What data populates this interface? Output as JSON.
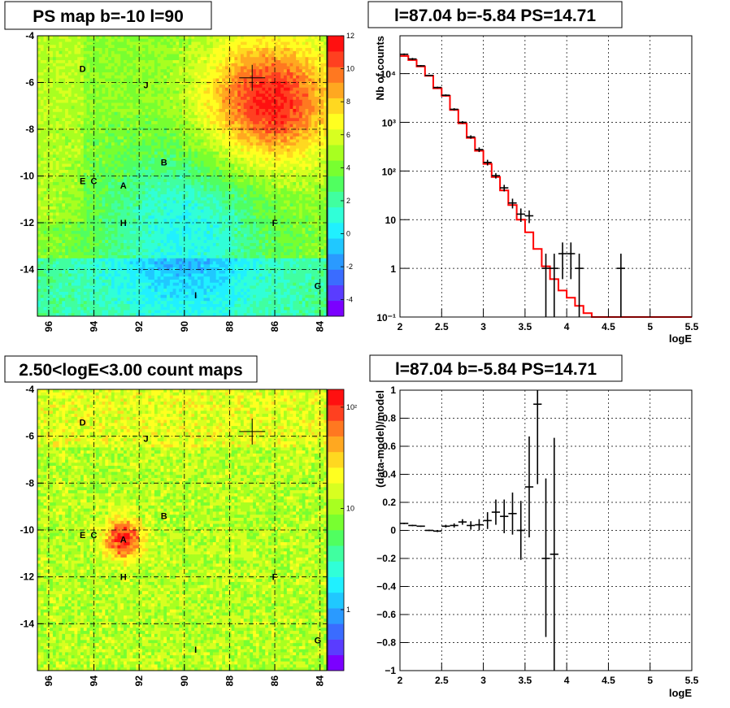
{
  "colors": {
    "model_line": "#ff0000",
    "data_marker": "#000000",
    "palette": [
      "#7b00ff",
      "#5a3cff",
      "#3a6cff",
      "#2a9aff",
      "#20c8ff",
      "#20f0ff",
      "#30ffd8",
      "#40ffa0",
      "#50ff60",
      "#78ff30",
      "#a8ff20",
      "#d8ff20",
      "#ffff20",
      "#ffd820",
      "#ffa820",
      "#ff7820",
      "#ff4020",
      "#ff1010"
    ]
  },
  "chart_data": [
    {
      "panel": "top-left",
      "type": "heatmap",
      "title": "PS map b=-10 l=90",
      "xticks": [
        "96",
        "94",
        "92",
        "90",
        "88",
        "86",
        "84"
      ],
      "yticks": [
        "-4",
        "-6",
        "-8",
        "-10",
        "-12",
        "-14"
      ],
      "xlim": [
        96.5,
        83.7
      ],
      "ylim": [
        -16,
        -4
      ],
      "colorbar": {
        "scale": "linear",
        "range": [
          -5,
          12
        ],
        "ticks": [
          "12",
          "10",
          "8",
          "6",
          "4",
          "2",
          "0",
          "-2",
          "-4"
        ]
      },
      "markers": [
        {
          "shape": "cross",
          "x": 87.0,
          "y": -5.8
        }
      ],
      "sources": [
        {
          "label": "D",
          "x": 94.5,
          "y": -5.4
        },
        {
          "label": "J",
          "x": 91.7,
          "y": -6.1
        },
        {
          "label": "B",
          "x": 90.9,
          "y": -9.4
        },
        {
          "label": "E",
          "x": 94.5,
          "y": -10.2
        },
        {
          "label": "C",
          "x": 94.0,
          "y": -10.2
        },
        {
          "label": "A",
          "x": 92.7,
          "y": -10.4
        },
        {
          "label": "H",
          "x": 92.7,
          "y": -12.0
        },
        {
          "label": "F",
          "x": 86.0,
          "y": -12.0
        },
        {
          "label": "I",
          "x": 89.5,
          "y": -15.1
        },
        {
          "label": "G",
          "x": 84.1,
          "y": -14.7
        }
      ]
    },
    {
      "panel": "top-right",
      "type": "line",
      "title": "l=87.04 b=-5.84 PS=14.71",
      "xlabel": "logE",
      "ylabel": "Nb of counts",
      "xlim": [
        2,
        5.5
      ],
      "ylim": [
        0.1,
        60000
      ],
      "yscale": "log",
      "xticks": [
        "2",
        "2.5",
        "3",
        "3.5",
        "4",
        "4.5",
        "5",
        "5.5"
      ],
      "yticks": [
        {
          "label": "10⁴",
          "v": 10000
        },
        {
          "label": "10³",
          "v": 1000
        },
        {
          "label": "10²",
          "v": 100
        },
        {
          "label": "10",
          "v": 10
        },
        {
          "label": "1",
          "v": 1
        },
        {
          "label": "10⁻¹",
          "v": 0.1
        }
      ],
      "grid": true,
      "bin_edges": [
        2.0,
        2.1,
        2.2,
        2.3,
        2.4,
        2.5,
        2.6,
        2.7,
        2.8,
        2.9,
        3.0,
        3.1,
        3.2,
        3.3,
        3.4,
        3.5,
        3.6,
        3.7,
        3.8,
        3.9,
        4.0,
        4.1,
        4.2,
        4.3,
        4.4,
        4.5,
        4.6,
        4.7,
        4.8,
        4.9,
        5.0,
        5.1,
        5.2,
        5.3,
        5.4,
        5.5
      ],
      "model": [
        23000,
        19000,
        14000,
        9000,
        5000,
        3500,
        1800,
        950,
        480,
        260,
        140,
        75,
        40,
        20,
        10,
        5.5,
        2.5,
        1.1,
        0.6,
        0.35,
        0.25,
        0.17,
        0.12,
        0.1,
        0.1,
        0.1,
        0.1,
        0.1,
        0.1,
        0.1,
        0.1,
        0.1,
        0.1,
        0.1,
        0.1
      ],
      "data": [
        {
          "x": 2.05,
          "y": 25000,
          "lo": 24000,
          "hi": 26000
        },
        {
          "x": 2.15,
          "y": 20000,
          "lo": 19000,
          "hi": 21000
        },
        {
          "x": 2.25,
          "y": 14500,
          "lo": 14000,
          "hi": 15000
        },
        {
          "x": 2.35,
          "y": 9200,
          "lo": 8900,
          "hi": 9500
        },
        {
          "x": 2.45,
          "y": 5200,
          "lo": 5000,
          "hi": 5400
        },
        {
          "x": 2.55,
          "y": 3600,
          "lo": 3450,
          "hi": 3750
        },
        {
          "x": 2.65,
          "y": 1850,
          "lo": 1750,
          "hi": 1950
        },
        {
          "x": 2.75,
          "y": 1000,
          "lo": 940,
          "hi": 1060
        },
        {
          "x": 2.85,
          "y": 500,
          "lo": 460,
          "hi": 540
        },
        {
          "x": 2.95,
          "y": 275,
          "lo": 245,
          "hi": 305
        },
        {
          "x": 3.05,
          "y": 150,
          "lo": 130,
          "hi": 170
        },
        {
          "x": 3.15,
          "y": 80,
          "lo": 70,
          "hi": 90
        },
        {
          "x": 3.25,
          "y": 45,
          "lo": 38,
          "hi": 52
        },
        {
          "x": 3.35,
          "y": 22,
          "lo": 17,
          "hi": 27
        },
        {
          "x": 3.45,
          "y": 13,
          "lo": 9,
          "hi": 17
        },
        {
          "x": 3.55,
          "y": 12,
          "lo": 8.5,
          "hi": 15.5
        },
        {
          "x": 3.75,
          "y": 1,
          "lo": 0.1,
          "hi": 2
        },
        {
          "x": 3.85,
          "y": 1,
          "lo": 0.1,
          "hi": 2
        },
        {
          "x": 3.95,
          "y": 2,
          "lo": 0.6,
          "hi": 3.4
        },
        {
          "x": 4.05,
          "y": 2,
          "lo": 0.6,
          "hi": 3.4
        },
        {
          "x": 4.15,
          "y": 1,
          "lo": 0.1,
          "hi": 2
        },
        {
          "x": 4.65,
          "y": 1,
          "lo": 0.1,
          "hi": 2
        }
      ]
    },
    {
      "panel": "bottom-left",
      "type": "heatmap",
      "title": "2.50<logE<3.00 count maps",
      "xticks": [
        "96",
        "94",
        "92",
        "90",
        "88",
        "86",
        "84"
      ],
      "yticks": [
        "-4",
        "-6",
        "-8",
        "-10",
        "-12",
        "-14"
      ],
      "xlim": [
        96.5,
        83.7
      ],
      "ylim": [
        -16,
        -4
      ],
      "colorbar": {
        "scale": "log",
        "range": [
          0.25,
          150
        ],
        "ticks": [
          "10²",
          "10",
          "1"
        ]
      },
      "markers": [
        {
          "shape": "cross",
          "x": 87.0,
          "y": -5.8
        }
      ],
      "sources": [
        {
          "label": "D",
          "x": 94.5,
          "y": -5.4
        },
        {
          "label": "J",
          "x": 91.7,
          "y": -6.1
        },
        {
          "label": "B",
          "x": 90.9,
          "y": -9.4
        },
        {
          "label": "E",
          "x": 94.5,
          "y": -10.2
        },
        {
          "label": "C",
          "x": 94.0,
          "y": -10.2
        },
        {
          "label": "A",
          "x": 92.7,
          "y": -10.4
        },
        {
          "label": "H",
          "x": 92.7,
          "y": -12.0
        },
        {
          "label": "F",
          "x": 86.0,
          "y": -12.0
        },
        {
          "label": "I",
          "x": 89.5,
          "y": -15.1
        },
        {
          "label": "G",
          "x": 84.1,
          "y": -14.7
        }
      ]
    },
    {
      "panel": "bottom-right",
      "type": "scatter",
      "title": "l=87.04 b=-5.84 PS=14.71",
      "xlabel": "logE",
      "ylabel": "(data-model)/model",
      "xlim": [
        2,
        5.5
      ],
      "ylim": [
        -1,
        1
      ],
      "xticks": [
        "2",
        "2.5",
        "3",
        "3.5",
        "4",
        "4.5",
        "5",
        "5.5"
      ],
      "yticks": [
        {
          "label": "1",
          "v": 1
        },
        {
          "label": "0.8",
          "v": 0.8
        },
        {
          "label": "0.6",
          "v": 0.6
        },
        {
          "label": "0.4",
          "v": 0.4
        },
        {
          "label": "0.2",
          "v": 0.2
        },
        {
          "label": "0",
          "v": 0
        },
        {
          "label": "−0.2",
          "v": -0.2
        },
        {
          "label": "−0.4",
          "v": -0.4
        },
        {
          "label": "−0.6",
          "v": -0.6
        },
        {
          "label": "−0.8",
          "v": -0.8
        },
        {
          "label": "−1",
          "v": -1
        }
      ],
      "grid": true,
      "data": [
        {
          "x": 2.05,
          "y": 0.05,
          "lo": 0.045,
          "hi": 0.055
        },
        {
          "x": 2.15,
          "y": 0.035,
          "lo": 0.03,
          "hi": 0.04
        },
        {
          "x": 2.25,
          "y": 0.03,
          "lo": 0.025,
          "hi": 0.035
        },
        {
          "x": 2.35,
          "y": 0.0,
          "lo": -0.005,
          "hi": 0.005
        },
        {
          "x": 2.45,
          "y": -0.005,
          "lo": -0.012,
          "hi": 0.002
        },
        {
          "x": 2.55,
          "y": 0.03,
          "lo": 0.02,
          "hi": 0.04
        },
        {
          "x": 2.65,
          "y": 0.035,
          "lo": 0.02,
          "hi": 0.05
        },
        {
          "x": 2.75,
          "y": 0.06,
          "lo": 0.04,
          "hi": 0.08
        },
        {
          "x": 2.85,
          "y": 0.035,
          "lo": 0.005,
          "hi": 0.065
        },
        {
          "x": 2.95,
          "y": 0.04,
          "lo": 0.0,
          "hi": 0.08
        },
        {
          "x": 3.05,
          "y": 0.07,
          "lo": 0.01,
          "hi": 0.13
        },
        {
          "x": 3.15,
          "y": 0.13,
          "lo": 0.04,
          "hi": 0.22
        },
        {
          "x": 3.25,
          "y": 0.1,
          "lo": -0.02,
          "hi": 0.22
        },
        {
          "x": 3.35,
          "y": 0.12,
          "lo": -0.03,
          "hi": 0.27
        },
        {
          "x": 3.45,
          "y": 0.0,
          "lo": -0.21,
          "hi": 0.21
        },
        {
          "x": 3.55,
          "y": 0.31,
          "lo": -0.05,
          "hi": 0.67
        },
        {
          "x": 3.65,
          "y": 0.9,
          "lo": 0.33,
          "hi": 1.0
        },
        {
          "x": 3.75,
          "y": -0.2,
          "lo": -0.76,
          "hi": 0.37
        },
        {
          "x": 3.85,
          "y": -0.17,
          "lo": -1.0,
          "hi": 0.66
        }
      ]
    }
  ]
}
